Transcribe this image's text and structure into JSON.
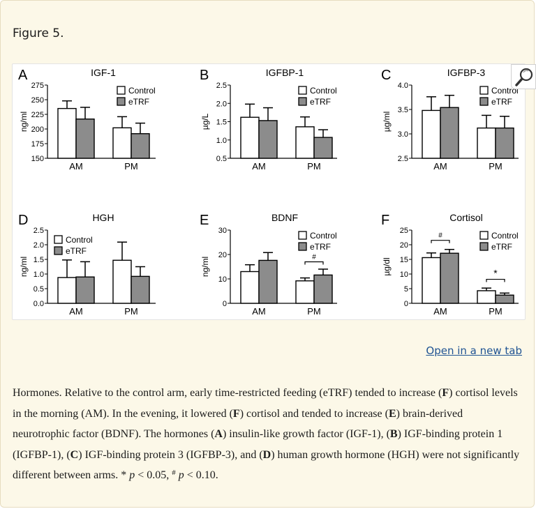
{
  "figure": {
    "label": "Figure 5."
  },
  "actions": {
    "open_new_tab": "Open in a new tab"
  },
  "caption": {
    "s1": "Hormones. Relative to the control arm, early time-restricted feeding (eTRF) tended to increase (",
    "F1": "F",
    "s2": ") cortisol levels in the morning (AM). In the evening, it lowered (",
    "F2": "F",
    "s3": ") cortisol and tended to increase (",
    "E": "E",
    "s4": ") brain-derived neurotrophic factor (BDNF). The hormones (",
    "A": "A",
    "s5": ") insulin-like growth factor (IGF-1), (",
    "B": "B",
    "s6": ") IGF-binding protein 1 (IGFBP-1), (",
    "C": "C",
    "s7": ") IGF-binding protein 3 (IGFBP-3), and (",
    "D": "D",
    "s8": ") human growth hormone (HGH) were not significantly different between arms. * ",
    "p1": "p",
    "s9": " < 0.05, ",
    "hash": "#",
    "s10": " ",
    "p2": "p",
    "s11": " < 0.10."
  },
  "colors": {
    "control": "#ffffff",
    "etrf": "#8c8c8c",
    "stroke": "#000000"
  },
  "chart_data": [
    {
      "panel": "A",
      "type": "bar",
      "title": "IGF-1",
      "ylabel": "ng/ml",
      "ylim": [
        150,
        275
      ],
      "yticks": [
        150,
        175,
        200,
        225,
        250,
        275
      ],
      "decimals": 0,
      "categories": [
        "AM",
        "PM"
      ],
      "series": [
        {
          "name": "Control",
          "values": [
            235,
            202
          ],
          "errors": [
            13,
            19
          ]
        },
        {
          "name": "eTRF",
          "values": [
            217,
            192
          ],
          "errors": [
            20,
            18
          ]
        }
      ],
      "legend": "top-right",
      "annotations": []
    },
    {
      "panel": "B",
      "type": "bar",
      "title": "IGFBP-1",
      "ylabel": "µg/L",
      "ylim": [
        0.5,
        2.5
      ],
      "yticks": [
        0.5,
        1.0,
        1.5,
        2.0,
        2.5
      ],
      "decimals": 1,
      "categories": [
        "AM",
        "PM"
      ],
      "series": [
        {
          "name": "Control",
          "values": [
            1.62,
            1.36
          ],
          "errors": [
            0.36,
            0.27
          ]
        },
        {
          "name": "eTRF",
          "values": [
            1.53,
            1.07
          ],
          "errors": [
            0.35,
            0.21
          ]
        }
      ],
      "legend": "top-right",
      "annotations": []
    },
    {
      "panel": "C",
      "type": "bar",
      "title": "IGFBP-3",
      "ylabel": "µg/ml",
      "ylim": [
        2.5,
        4.0
      ],
      "yticks": [
        2.5,
        3.0,
        3.5,
        4.0
      ],
      "decimals": 1,
      "categories": [
        "AM",
        "PM"
      ],
      "series": [
        {
          "name": "Control",
          "values": [
            3.48,
            3.12
          ],
          "errors": [
            0.28,
            0.26
          ]
        },
        {
          "name": "eTRF",
          "values": [
            3.54,
            3.12
          ],
          "errors": [
            0.25,
            0.24
          ]
        }
      ],
      "legend": "top-right",
      "annotations": []
    },
    {
      "panel": "D",
      "type": "bar",
      "title": "HGH",
      "ylabel": "ng/ml",
      "ylim": [
        0,
        2.5
      ],
      "yticks": [
        0.0,
        0.5,
        1.0,
        1.5,
        2.0,
        2.5
      ],
      "decimals": 1,
      "categories": [
        "AM",
        "PM"
      ],
      "series": [
        {
          "name": "Control",
          "values": [
            0.88,
            1.47
          ],
          "errors": [
            0.6,
            0.62
          ]
        },
        {
          "name": "eTRF",
          "values": [
            0.9,
            0.92
          ],
          "errors": [
            0.52,
            0.33
          ]
        }
      ],
      "legend": "top-left",
      "annotations": []
    },
    {
      "panel": "E",
      "type": "bar",
      "title": "BDNF",
      "ylabel": "ng/ml",
      "ylim": [
        0,
        30
      ],
      "yticks": [
        0,
        10,
        20,
        30
      ],
      "decimals": 0,
      "categories": [
        "AM",
        "PM"
      ],
      "series": [
        {
          "name": "Control",
          "values": [
            13,
            9.2
          ],
          "errors": [
            2.8,
            1.2
          ]
        },
        {
          "name": "eTRF",
          "values": [
            17.6,
            11.6
          ],
          "errors": [
            3.2,
            2.4
          ]
        }
      ],
      "legend": "top-right",
      "annotations": [
        {
          "category": "PM",
          "symbol": "#",
          "at": 17
        }
      ]
    },
    {
      "panel": "F",
      "type": "bar",
      "title": "Cortisol",
      "ylabel": "µg/dl",
      "ylim": [
        0,
        25
      ],
      "yticks": [
        0,
        5,
        10,
        15,
        20,
        25
      ],
      "decimals": 0,
      "categories": [
        "AM",
        "PM"
      ],
      "series": [
        {
          "name": "Control",
          "values": [
            15.6,
            4.3
          ],
          "errors": [
            1.6,
            0.9
          ]
        },
        {
          "name": "eTRF",
          "values": [
            17.1,
            2.8
          ],
          "errors": [
            1.3,
            0.7
          ]
        }
      ],
      "legend": "top-right",
      "annotations": [
        {
          "category": "AM",
          "symbol": "#",
          "at": 21.5
        },
        {
          "category": "PM",
          "symbol": "*",
          "at": 8.2
        }
      ]
    }
  ]
}
